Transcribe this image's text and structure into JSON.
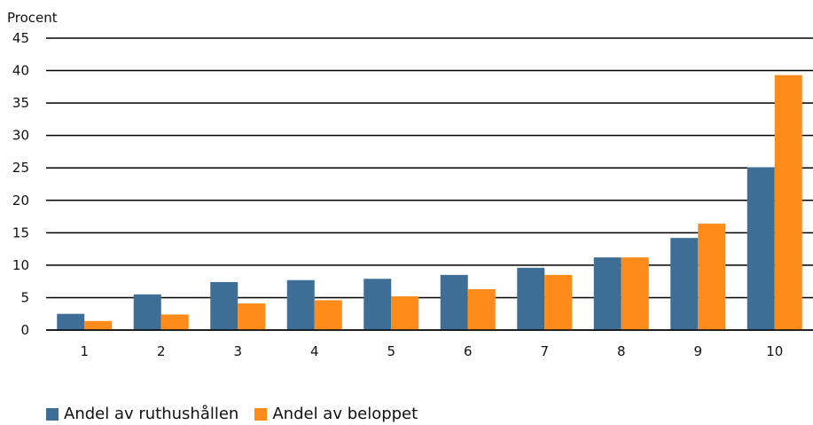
{
  "chart_data": {
    "type": "bar",
    "ylabel": "Procent",
    "xlabel": "",
    "ylim": [
      0,
      45
    ],
    "yticks": [
      0,
      5,
      10,
      15,
      20,
      25,
      30,
      35,
      40,
      45
    ],
    "grid": true,
    "legend_position": "bottom-left",
    "categories": [
      "1",
      "2",
      "3",
      "4",
      "5",
      "6",
      "7",
      "8",
      "9",
      "10"
    ],
    "series": [
      {
        "name": "Andel av ruthushållen",
        "color": "#3e6e96",
        "values": [
          2.5,
          5.5,
          7.4,
          7.7,
          7.9,
          8.5,
          9.6,
          11.2,
          14.2,
          25.1
        ]
      },
      {
        "name": "Andel av beloppet",
        "color": "#ff8c1a",
        "values": [
          1.4,
          2.4,
          4.1,
          4.6,
          5.2,
          6.3,
          8.5,
          11.2,
          16.4,
          39.3
        ]
      }
    ]
  }
}
